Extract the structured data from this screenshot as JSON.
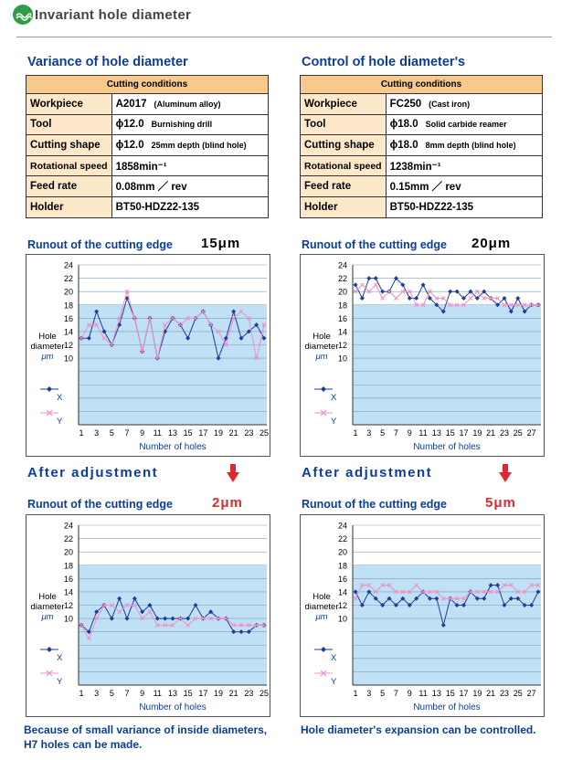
{
  "header": {
    "title": "Invariant hole diameter"
  },
  "left": {
    "title": "Variance of hole diameter",
    "conditions_header": "Cutting conditions",
    "rows": [
      {
        "key": "Workpiece",
        "value": "A2017",
        "sub": "(Aluminum alloy)"
      },
      {
        "key": "Tool",
        "value": "ϕ12.0",
        "sub": "Burnishing drill"
      },
      {
        "key": "Cutting shape",
        "value": "ϕ12.0",
        "sub": "25mm depth (blind hole)"
      },
      {
        "key": "Rotational speed",
        "value": "1858min⁻¹",
        "sub": ""
      },
      {
        "key": "Feed rate",
        "value": "0.08mm ／ rev",
        "sub": ""
      },
      {
        "key": "Holder",
        "value": "BT50-HDZ22-135",
        "sub": ""
      }
    ],
    "runout_label": "Runout of the cutting edge",
    "runout_before": "15μm",
    "after_label": "After adjustment",
    "runout_after": "2μm",
    "note": "Because of small variance of inside diameters, H7 holes can be made."
  },
  "right": {
    "title": "Control of hole diameter's",
    "conditions_header": "Cutting conditions",
    "rows": [
      {
        "key": "Workpiece",
        "value": "FC250",
        "sub": "(Cast iron)"
      },
      {
        "key": "Tool",
        "value": "ϕ18.0",
        "sub": "Solid carbide reamer"
      },
      {
        "key": "Cutting shape",
        "value": "ϕ18.0",
        "sub": "8mm depth (blind hole)"
      },
      {
        "key": "Rotational speed",
        "value": "1238min⁻¹",
        "sub": ""
      },
      {
        "key": "Feed rate",
        "value": "0.15mm ／ rev",
        "sub": ""
      },
      {
        "key": "Holder",
        "value": "BT50-HDZ22-135",
        "sub": ""
      }
    ],
    "runout_label": "Runout of the cutting edge",
    "runout_before": "20μm",
    "after_label": "After adjustment",
    "runout_after": "5μm",
    "note": "Hole diameter's expansion can be controlled."
  },
  "colors": {
    "band": "#bfe0f5",
    "x_series": "#1f3c99",
    "y_series": "#f08fc6",
    "title": "#0b3d9a",
    "accent": "#e0282e"
  },
  "chart_data": [
    {
      "type": "line",
      "xlabel": "Number of holes",
      "ylabel": "Hole diameter μm",
      "ylim": [
        0,
        24
      ],
      "y_ticks": [
        0,
        2,
        4,
        6,
        8,
        10,
        12,
        14,
        16,
        18,
        20,
        22,
        24
      ],
      "y_tick_labels": [
        "",
        "",
        "",
        "",
        "",
        "10",
        "12",
        "14",
        "16",
        "18",
        "20",
        "22",
        "24"
      ],
      "x_ticks": [
        1,
        3,
        5,
        7,
        9,
        11,
        13,
        15,
        17,
        19,
        21,
        23,
        25
      ],
      "band": [
        0,
        18
      ],
      "x": [
        1,
        2,
        3,
        4,
        5,
        6,
        7,
        8,
        9,
        10,
        11,
        12,
        13,
        14,
        15,
        16,
        17,
        18,
        19,
        20,
        21,
        22,
        23,
        24,
        25
      ],
      "series": [
        {
          "name": "X",
          "values": [
            13,
            13,
            17,
            14,
            12,
            15,
            19,
            16,
            11,
            16,
            10,
            14,
            16,
            15,
            13,
            16,
            17,
            15,
            10,
            13,
            17,
            13,
            14,
            15,
            13
          ]
        },
        {
          "name": "Y",
          "values": [
            13,
            15,
            15,
            13,
            12,
            16,
            20,
            16,
            11,
            16,
            10,
            15,
            16,
            15,
            16,
            16,
            17,
            15,
            14,
            12,
            16,
            17,
            16,
            10,
            15
          ]
        }
      ]
    },
    {
      "type": "line",
      "xlabel": "Number of holes",
      "ylabel": "Hole diameter μm",
      "ylim": [
        0,
        24
      ],
      "y_ticks": [
        0,
        2,
        4,
        6,
        8,
        10,
        12,
        14,
        16,
        18,
        20,
        22,
        24
      ],
      "y_tick_labels": [
        "",
        "",
        "",
        "",
        "",
        "10",
        "12",
        "14",
        "16",
        "18",
        "20",
        "22",
        "24"
      ],
      "x_ticks": [
        1,
        3,
        5,
        7,
        9,
        11,
        13,
        15,
        17,
        19,
        21,
        23,
        25,
        27
      ],
      "band": [
        0,
        18
      ],
      "x": [
        1,
        2,
        3,
        4,
        5,
        6,
        7,
        8,
        9,
        10,
        11,
        12,
        13,
        14,
        15,
        16,
        17,
        18,
        19,
        20,
        21,
        22,
        23,
        24,
        25,
        26,
        27,
        28
      ],
      "series": [
        {
          "name": "X",
          "values": [
            21,
            19,
            22,
            22,
            20,
            20,
            22,
            21,
            19,
            19,
            21,
            19,
            18,
            17,
            20,
            20,
            19,
            20,
            19,
            20,
            19,
            18,
            19,
            17,
            19,
            17,
            18,
            18
          ]
        },
        {
          "name": "Y",
          "values": [
            20,
            21,
            20,
            21,
            19,
            20,
            19,
            20,
            20,
            18,
            18,
            20,
            19,
            19,
            18,
            18,
            18,
            19,
            20,
            19,
            19,
            19,
            18,
            18,
            18,
            18,
            18,
            18
          ]
        }
      ]
    },
    {
      "type": "line",
      "xlabel": "Number of holes",
      "ylabel": "Hole diameter μm",
      "ylim": [
        0,
        24
      ],
      "y_ticks": [
        0,
        2,
        4,
        6,
        8,
        10,
        12,
        14,
        16,
        18,
        20,
        22,
        24
      ],
      "y_tick_labels": [
        "",
        "",
        "",
        "",
        "",
        "10",
        "12",
        "14",
        "16",
        "18",
        "20",
        "22",
        "24"
      ],
      "x_ticks": [
        1,
        3,
        5,
        7,
        9,
        11,
        13,
        15,
        17,
        19,
        21,
        23,
        25
      ],
      "band": [
        0,
        18
      ],
      "x": [
        1,
        2,
        3,
        4,
        5,
        6,
        7,
        8,
        9,
        10,
        11,
        12,
        13,
        14,
        15,
        16,
        17,
        18,
        19,
        20,
        21,
        22,
        23,
        24,
        25
      ],
      "series": [
        {
          "name": "X",
          "values": [
            9,
            8,
            11,
            12,
            10,
            13,
            10,
            13,
            11,
            12,
            10,
            10,
            10,
            10,
            10,
            12,
            10,
            11,
            10,
            10,
            8,
            8,
            8,
            9,
            9
          ]
        },
        {
          "name": "Y",
          "values": [
            9,
            7,
            10,
            12,
            12,
            11,
            12,
            12,
            10,
            11,
            9,
            9,
            9,
            10,
            9,
            10,
            10,
            10,
            10,
            10,
            9,
            9,
            9,
            9,
            9
          ]
        }
      ]
    },
    {
      "type": "line",
      "xlabel": "Number of holes",
      "ylabel": "Hole diameter μm",
      "ylim": [
        0,
        24
      ],
      "y_ticks": [
        0,
        2,
        4,
        6,
        8,
        10,
        12,
        14,
        16,
        18,
        20,
        22,
        24
      ],
      "y_tick_labels": [
        "",
        "",
        "",
        "",
        "",
        "10",
        "12",
        "14",
        "16",
        "18",
        "20",
        "22",
        "24"
      ],
      "x_ticks": [
        1,
        3,
        5,
        7,
        9,
        11,
        13,
        15,
        17,
        19,
        21,
        23,
        25,
        27
      ],
      "band": [
        0,
        18
      ],
      "x": [
        1,
        2,
        3,
        4,
        5,
        6,
        7,
        8,
        9,
        10,
        11,
        12,
        13,
        14,
        15,
        16,
        17,
        18,
        19,
        20,
        21,
        22,
        23,
        24,
        25,
        26,
        27,
        28
      ],
      "series": [
        {
          "name": "X",
          "values": [
            14,
            12,
            14,
            13,
            12,
            13,
            12,
            13,
            12,
            13,
            14,
            13,
            13,
            9,
            13,
            12,
            12,
            14,
            13,
            13,
            15,
            15,
            12,
            13,
            13,
            12,
            12,
            14
          ]
        },
        {
          "name": "Y",
          "values": [
            13,
            15,
            15,
            14,
            15,
            15,
            14,
            14,
            14,
            15,
            14,
            14,
            14,
            13,
            13,
            13,
            13,
            14,
            14,
            14,
            14,
            14,
            15,
            15,
            14,
            14,
            15,
            15
          ]
        }
      ]
    }
  ]
}
